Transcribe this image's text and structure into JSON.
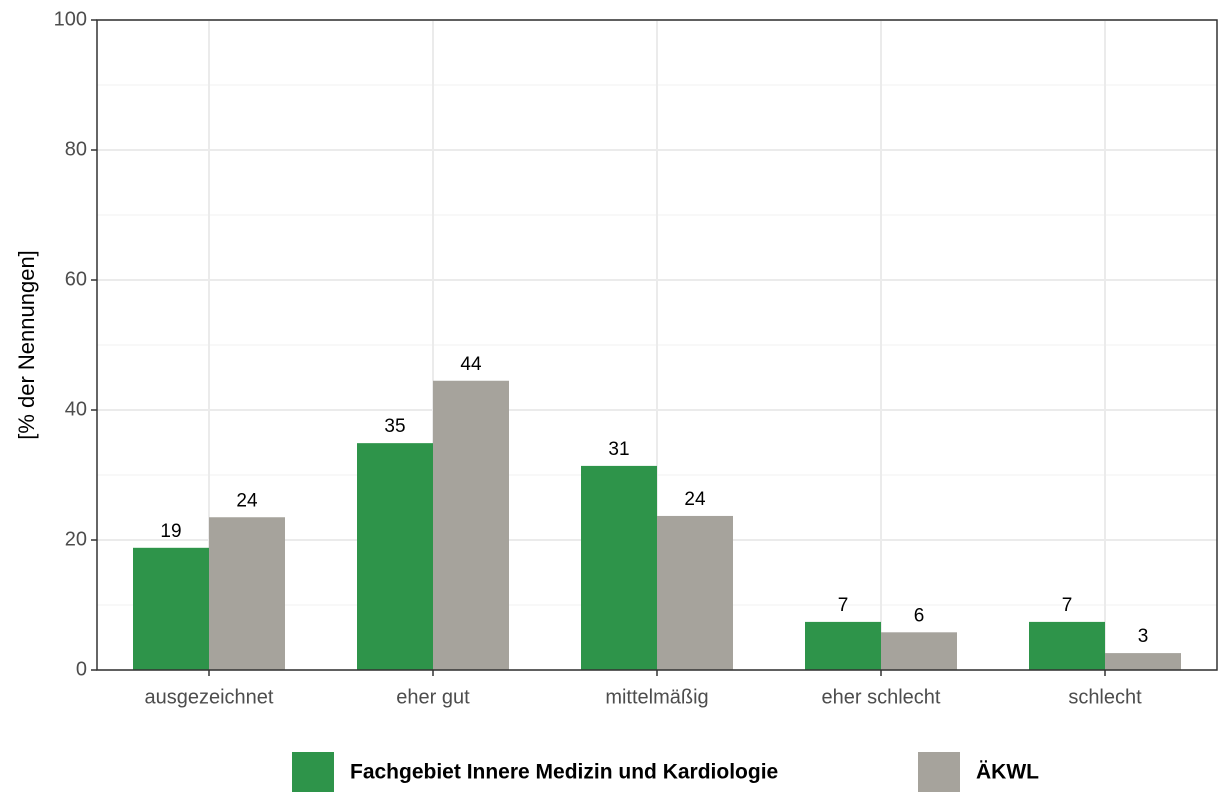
{
  "chart_data": {
    "type": "bar",
    "y_label": "[% der Nennungen]",
    "categories": [
      "ausgezeichnet",
      "eher gut",
      "mittelmäßig",
      "eher schlecht",
      "schlecht"
    ],
    "series": [
      {
        "name": "Fachgebiet Innere Medizin und Kardiologie",
        "color": "#2e944a",
        "values": [
          18.8,
          34.9,
          31.4,
          7.4,
          7.4
        ],
        "value_labels": [
          "19",
          "35",
          "31",
          "7",
          "7"
        ]
      },
      {
        "name": "ÄKWL",
        "color": "#a6a39c",
        "values": [
          23.5,
          44.5,
          23.7,
          5.8,
          2.6
        ],
        "value_labels": [
          "24",
          "44",
          "24",
          "6",
          "3"
        ]
      }
    ],
    "ylim": [
      0,
      100
    ],
    "yticks": [
      0,
      20,
      40,
      60,
      80,
      100
    ],
    "minor_yticks": [
      10,
      30,
      50,
      70,
      90
    ],
    "grid": true,
    "legend": "bottom"
  }
}
